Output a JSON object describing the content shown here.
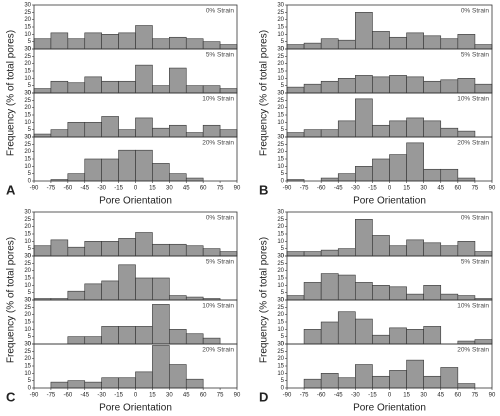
{
  "chart_data": [
    {
      "type": "histogram",
      "label": "A",
      "xlabel": "Pore Orientation",
      "ylabel": "Frequency (% of total pores)",
      "bins": [
        -90,
        -75,
        -60,
        -45,
        -30,
        -15,
        0,
        15,
        30,
        45,
        60,
        75,
        90
      ],
      "xticks": [
        -90,
        -75,
        -60,
        -45,
        -30,
        -15,
        0,
        15,
        30,
        45,
        60,
        75,
        90
      ],
      "ylim": [
        0,
        30
      ],
      "yticks": [
        0,
        5,
        10,
        15,
        20,
        25,
        30
      ],
      "color": "#999999",
      "subplots": [
        {
          "title": "0% Strain",
          "values": [
            7,
            11,
            7,
            11,
            10,
            11,
            16,
            7,
            8,
            7,
            5,
            3
          ]
        },
        {
          "title": "5% Strain",
          "values": [
            3,
            8,
            7,
            11,
            8,
            8,
            19,
            5,
            17,
            5,
            5,
            3
          ]
        },
        {
          "title": "10% Strain",
          "values": [
            2,
            5,
            10,
            10,
            14,
            5,
            13,
            6,
            8,
            3,
            8,
            5
          ]
        },
        {
          "title": "20% Strain",
          "values": [
            0,
            1,
            5,
            15,
            15,
            21,
            21,
            12,
            5,
            2,
            0,
            0
          ]
        }
      ]
    },
    {
      "type": "histogram",
      "label": "B",
      "xlabel": "Pore Orientation",
      "ylabel": "Frequency (% of total pores)",
      "bins": [
        -90,
        -75,
        -60,
        -45,
        -30,
        -15,
        0,
        15,
        30,
        45,
        60,
        75,
        90
      ],
      "xticks": [
        -90,
        -75,
        -60,
        -45,
        -30,
        -15,
        0,
        15,
        30,
        45,
        60,
        75,
        90
      ],
      "ylim": [
        0,
        30
      ],
      "yticks": [
        0,
        5,
        10,
        15,
        20,
        25,
        30
      ],
      "color": "#999999",
      "subplots": [
        {
          "title": "0% Strain",
          "values": [
            3,
            4,
            7,
            6,
            25,
            12,
            8,
            11,
            9,
            7,
            10,
            3
          ]
        },
        {
          "title": "5% Strain",
          "values": [
            4,
            6,
            8,
            10,
            12,
            11,
            12,
            11,
            8,
            9,
            10,
            6
          ]
        },
        {
          "title": "10% Strain",
          "values": [
            3,
            5,
            5,
            11,
            26,
            8,
            11,
            13,
            11,
            6,
            4,
            0
          ]
        },
        {
          "title": "20% Strain",
          "values": [
            1,
            0,
            2,
            5,
            10,
            15,
            18,
            26,
            8,
            8,
            2,
            0
          ]
        }
      ]
    },
    {
      "type": "histogram",
      "label": "C",
      "xlabel": "Pore Orientation",
      "ylabel": "Frequency (% of total pores)",
      "bins": [
        -90,
        -75,
        -60,
        -45,
        -30,
        -15,
        0,
        15,
        30,
        45,
        60,
        75,
        90
      ],
      "xticks": [
        -90,
        -75,
        -60,
        -45,
        -30,
        -15,
        0,
        15,
        30,
        45,
        60,
        75,
        90
      ],
      "ylim": [
        0,
        30
      ],
      "yticks": [
        0,
        5,
        10,
        15,
        20,
        25,
        30
      ],
      "color": "#999999",
      "subplots": [
        {
          "title": "0% Strain",
          "values": [
            7,
            11,
            6,
            10,
            10,
            12,
            16,
            8,
            8,
            7,
            5,
            3
          ]
        },
        {
          "title": "5% Strain",
          "values": [
            1,
            1,
            6,
            11,
            13,
            24,
            15,
            15,
            3,
            2,
            1,
            0
          ]
        },
        {
          "title": "10% Strain",
          "values": [
            0,
            0,
            5,
            5,
            12,
            12,
            12,
            27,
            10,
            7,
            4,
            0
          ]
        },
        {
          "title": "20% Strain",
          "values": [
            0,
            4,
            5,
            4,
            7,
            7,
            11,
            29,
            16,
            6,
            0,
            0
          ]
        }
      ]
    },
    {
      "type": "histogram",
      "label": "D",
      "xlabel": "Pore Orientation",
      "ylabel": "Frequency (% of total pores)",
      "bins": [
        -90,
        -75,
        -60,
        -45,
        -30,
        -15,
        0,
        15,
        30,
        45,
        60,
        75,
        90
      ],
      "xticks": [
        -90,
        -75,
        -60,
        -45,
        -30,
        -15,
        0,
        15,
        30,
        45,
        60,
        75,
        90
      ],
      "ylim": [
        0,
        30
      ],
      "yticks": [
        0,
        5,
        10,
        15,
        20,
        25,
        30
      ],
      "color": "#999999",
      "subplots": [
        {
          "title": "0% Strain",
          "values": [
            3,
            3,
            4,
            5,
            25,
            14,
            7,
            11,
            9,
            7,
            10,
            3
          ]
        },
        {
          "title": "5% Strain",
          "values": [
            3,
            12,
            18,
            17,
            12,
            10,
            9,
            4,
            10,
            4,
            3,
            1
          ]
        },
        {
          "title": "10% Strain",
          "values": [
            0,
            10,
            15,
            22,
            17,
            6,
            11,
            10,
            12,
            0,
            2,
            3
          ]
        },
        {
          "title": "20% Strain",
          "values": [
            0,
            6,
            10,
            7,
            16,
            8,
            12,
            19,
            8,
            14,
            3,
            0
          ]
        }
      ]
    }
  ]
}
